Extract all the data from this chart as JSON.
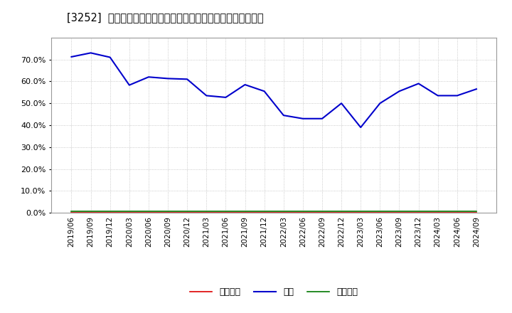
{
  "title": "[3252]  売上債権、在庫、買入債務の総資産に対する比率の推移",
  "x_labels": [
    "2019/06",
    "2019/09",
    "2019/12",
    "2020/03",
    "2020/06",
    "2020/09",
    "2020/12",
    "2021/03",
    "2021/06",
    "2021/09",
    "2021/12",
    "2022/03",
    "2022/06",
    "2022/09",
    "2022/12",
    "2023/03",
    "2023/06",
    "2023/09",
    "2023/12",
    "2024/03",
    "2024/06",
    "2024/09"
  ],
  "inventory": [
    0.712,
    0.73,
    0.71,
    0.583,
    0.62,
    0.613,
    0.61,
    0.535,
    0.527,
    0.585,
    0.555,
    0.445,
    0.43,
    0.43,
    0.5,
    0.39,
    0.5,
    0.555,
    0.59,
    0.535,
    0.535,
    0.565
  ],
  "accounts_receivable": [
    0.002,
    0.002,
    0.002,
    0.002,
    0.002,
    0.002,
    0.002,
    0.002,
    0.002,
    0.002,
    0.002,
    0.002,
    0.002,
    0.002,
    0.002,
    0.002,
    0.002,
    0.002,
    0.002,
    0.002,
    0.002,
    0.002
  ],
  "accounts_payable": [
    0.007,
    0.007,
    0.007,
    0.007,
    0.007,
    0.007,
    0.007,
    0.007,
    0.007,
    0.007,
    0.007,
    0.007,
    0.007,
    0.007,
    0.007,
    0.007,
    0.007,
    0.007,
    0.007,
    0.007,
    0.007,
    0.007
  ],
  "line_colors": {
    "accounts_receivable": "#dd0000",
    "inventory": "#0000cc",
    "accounts_payable": "#007700"
  },
  "legend_labels": {
    "accounts_receivable": "売上債権",
    "inventory": "在庫",
    "accounts_payable": "買入債務"
  },
  "ylim": [
    0.0,
    0.8
  ],
  "yticks": [
    0.0,
    0.1,
    0.2,
    0.3,
    0.4,
    0.5,
    0.6,
    0.7
  ],
  "background_color": "#ffffff",
  "plot_bg_color": "#ffffff",
  "grid_color": "#bbbbbb",
  "title_fontsize": 10.5
}
